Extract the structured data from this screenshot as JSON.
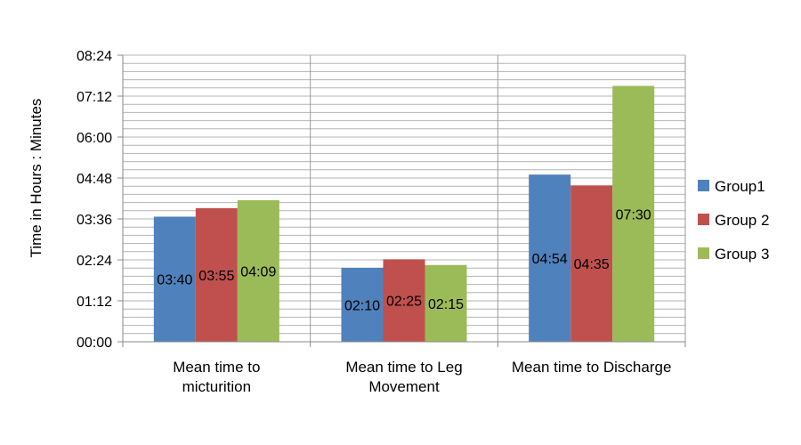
{
  "chart_data": {
    "type": "bar",
    "ylabel": "Time in Hours : Minutes",
    "y_unit": "minutes",
    "ylim": [
      0,
      504
    ],
    "y_ticks": [
      {
        "value": 0,
        "label": "00:00"
      },
      {
        "value": 72,
        "label": "01:12"
      },
      {
        "value": 144,
        "label": "02:24"
      },
      {
        "value": 216,
        "label": "03:36"
      },
      {
        "value": 288,
        "label": "04:48"
      },
      {
        "value": 360,
        "label": "06:00"
      },
      {
        "value": 432,
        "label": "07:12"
      },
      {
        "value": 504,
        "label": "08:24"
      }
    ],
    "minor_grid_step": 14.4,
    "categories": [
      {
        "lines": [
          "Mean time to",
          "micturition"
        ]
      },
      {
        "lines": [
          "Mean time to Leg",
          "Movement"
        ]
      },
      {
        "lines": [
          "Mean time to Discharge"
        ]
      }
    ],
    "series": [
      {
        "name": "Group1",
        "color": "#4f81bd",
        "values": [
          220,
          130,
          294
        ],
        "labels": [
          "03:40",
          "02:10",
          "04:54"
        ]
      },
      {
        "name": "Group 2",
        "color": "#c0504d",
        "values": [
          235,
          145,
          275
        ],
        "labels": [
          "03:55",
          "02:25",
          "04:35"
        ]
      },
      {
        "name": "Group 3",
        "color": "#9bbb59",
        "values": [
          249,
          135,
          450
        ],
        "labels": [
          "04:09",
          "02:15",
          "07:30"
        ]
      }
    ],
    "legend_position": "right",
    "grid": true
  }
}
